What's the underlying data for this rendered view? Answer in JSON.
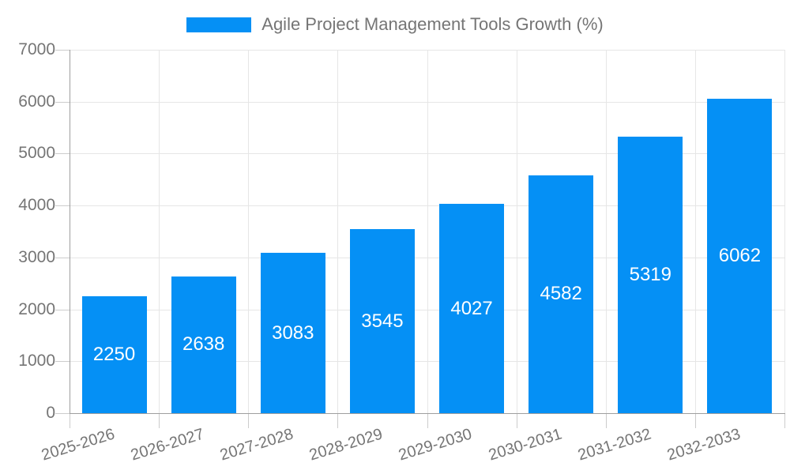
{
  "chart_data": {
    "type": "bar",
    "title": "Agile Project Management Tools Growth (%)",
    "categories": [
      "2025-2026",
      "2026-2027",
      "2027-2028",
      "2028-2029",
      "2029-2030",
      "2030-2031",
      "2031-2032",
      "2032-2033"
    ],
    "values": [
      2250,
      2638,
      3083,
      3545,
      4027,
      4582,
      5319,
      6062
    ],
    "series_name": "Agile Project Management Tools Growth (%)",
    "xlabel": "",
    "ylabel": "",
    "ylim": [
      0,
      7000
    ],
    "y_ticks": [
      0,
      1000,
      2000,
      3000,
      4000,
      5000,
      6000,
      7000
    ],
    "grid": true,
    "legend_position": "top-center",
    "bar_labels_visible": true,
    "bar_label_position": "center",
    "x_label_rotation_deg": -17,
    "colors": {
      "bar": "#0590f5",
      "bar_label": "#ffffff",
      "axis_text": "#757575",
      "legend_text": "#757575",
      "gridline": "#e6e6e6",
      "axis_line": "#9e9e9e",
      "tick": "#cccccc",
      "background": "#ffffff"
    }
  }
}
